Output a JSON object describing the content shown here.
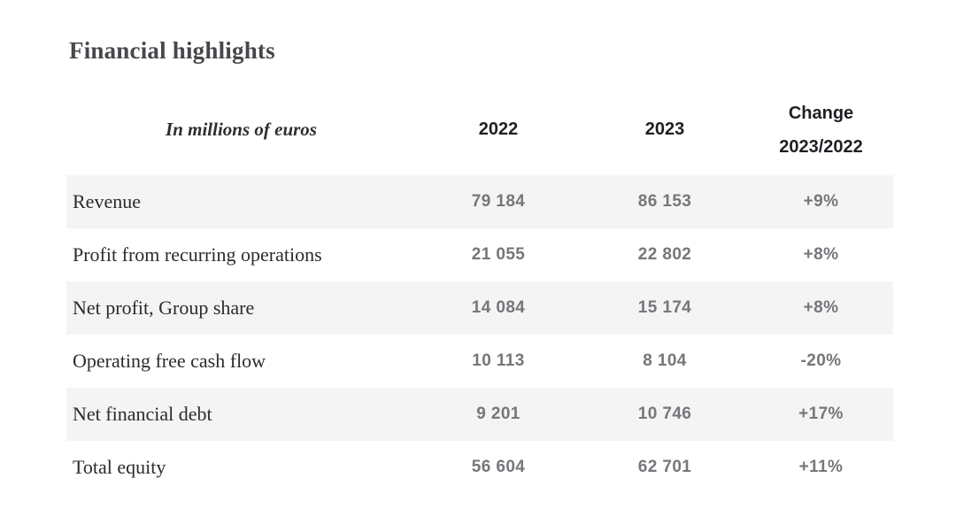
{
  "page": {
    "title": "Financial highlights"
  },
  "table": {
    "header": {
      "unit_label": "In millions of euros",
      "col_2022": "2022",
      "col_2023": "2023",
      "change_line1": "Change",
      "change_line2": "2023/2022"
    },
    "rows": [
      {
        "label": "Revenue",
        "y2022": "79 184",
        "y2023": "86 153",
        "change": "+9%"
      },
      {
        "label": "Profit from recurring operations",
        "y2022": "21 055",
        "y2023": "22 802",
        "change": "+8%"
      },
      {
        "label": "Net profit, Group share",
        "y2022": "14 084",
        "y2023": "15 174",
        "change": "+8%"
      },
      {
        "label": "Operating free cash flow",
        "y2022": "10 113",
        "y2023": "8 104",
        "change": "-20%"
      },
      {
        "label": "Net financial debt",
        "y2022": "9 201",
        "y2023": "10 746",
        "change": "+17%"
      },
      {
        "label": "Total equity",
        "y2022": "56 604",
        "y2023": "62 701",
        "change": "+11%"
      }
    ]
  },
  "colors": {
    "stripe": "#f4f4f4",
    "figure_text": "#76767b",
    "label_text": "#2b2b30",
    "header_text": "#1f1f24",
    "title_text": "#47474c",
    "background": "#ffffff"
  }
}
